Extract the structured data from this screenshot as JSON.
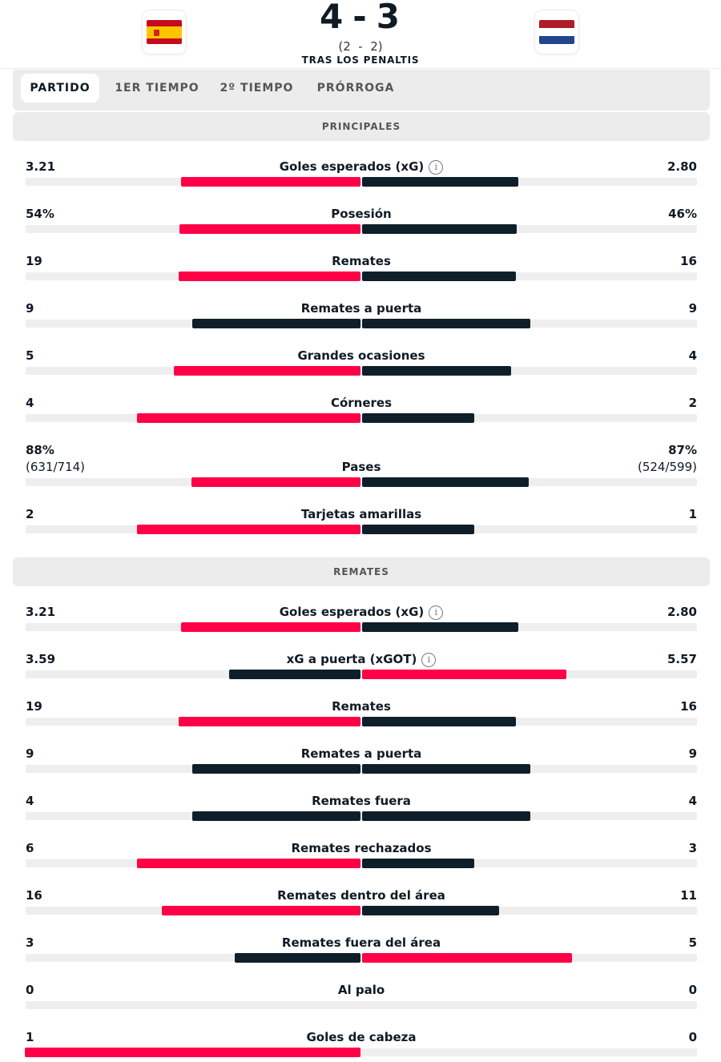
{
  "match": {
    "home_team_flag": "spain-flag",
    "away_team_flag": "netherlands-flag",
    "score_home": "4",
    "score_sep": "-",
    "score_away": "3",
    "regular_score": "(2  -  2)",
    "note": "TRAS LOS PENALTIS"
  },
  "tabs": [
    "PARTIDO",
    "1ER TIEMPO",
    "2º TIEMPO",
    "PRÓRROGA"
  ],
  "active_tab": "PARTIDO",
  "colors": {
    "leader": "#ff0046",
    "trailer": "#0f1f2a",
    "track": "#eeeeee",
    "section_bg": "#ececec"
  },
  "sections": [
    {
      "title": "PRINCIPALES",
      "stats": [
        {
          "label": "Goles esperados (xG)",
          "info": true,
          "home": "3.21",
          "away": "2.80",
          "home_value": 3.21,
          "away_value": 2.8
        },
        {
          "label": "Posesión",
          "home": "54%",
          "away": "46%",
          "home_value": 54,
          "away_value": 46
        },
        {
          "label": "Remates",
          "home": "19",
          "away": "16",
          "home_value": 19,
          "away_value": 16
        },
        {
          "label": "Remates a puerta",
          "home": "9",
          "away": "9",
          "home_value": 9,
          "away_value": 9
        },
        {
          "label": "Grandes ocasiones",
          "home": "5",
          "away": "4",
          "home_value": 5,
          "away_value": 4
        },
        {
          "label": "Córneres",
          "home": "4",
          "away": "2",
          "home_value": 4,
          "away_value": 2
        },
        {
          "label": "Pases",
          "home": "88%",
          "away": "87%",
          "home_sub": "(631/714)",
          "away_sub": "(524/599)",
          "home_value": 88,
          "away_value": 87
        },
        {
          "label": "Tarjetas amarillas",
          "home": "2",
          "away": "1",
          "home_value": 2,
          "away_value": 1
        }
      ]
    },
    {
      "title": "REMATES",
      "stats": [
        {
          "label": "Goles esperados (xG)",
          "info": true,
          "home": "3.21",
          "away": "2.80",
          "home_value": 3.21,
          "away_value": 2.8
        },
        {
          "label": "xG a puerta (xGOT)",
          "info": true,
          "home": "3.59",
          "away": "5.57",
          "home_value": 3.59,
          "away_value": 5.57
        },
        {
          "label": "Remates",
          "home": "19",
          "away": "16",
          "home_value": 19,
          "away_value": 16
        },
        {
          "label": "Remates a puerta",
          "home": "9",
          "away": "9",
          "home_value": 9,
          "away_value": 9
        },
        {
          "label": "Remates fuera",
          "home": "4",
          "away": "4",
          "home_value": 4,
          "away_value": 4
        },
        {
          "label": "Remates rechazados",
          "home": "6",
          "away": "3",
          "home_value": 6,
          "away_value": 3
        },
        {
          "label": "Remates dentro del área",
          "home": "16",
          "away": "11",
          "home_value": 16,
          "away_value": 11
        },
        {
          "label": "Remates fuera del área",
          "home": "3",
          "away": "5",
          "home_value": 3,
          "away_value": 5
        },
        {
          "label": "Al palo",
          "home": "0",
          "away": "0",
          "home_value": 0,
          "away_value": 0
        },
        {
          "label": "Goles de cabeza",
          "home": "1",
          "away": "0",
          "home_value": 1,
          "away_value": 0
        }
      ]
    }
  ]
}
